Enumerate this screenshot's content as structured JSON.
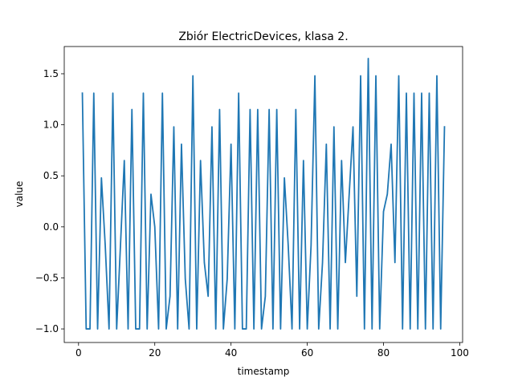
{
  "chart_data": {
    "type": "line",
    "title": "Zbiór ElectricDevices, klasa 2.",
    "xlabel": "timestamp",
    "ylabel": "value",
    "xlim": [
      -3.75,
      100.75
    ],
    "ylim": [
      -1.133,
      1.767
    ],
    "xticks": [
      0,
      20,
      40,
      60,
      80,
      100
    ],
    "xtick_labels": [
      "0",
      "20",
      "40",
      "60",
      "80",
      "100"
    ],
    "yticks": [
      -1.0,
      -0.5,
      0.0,
      0.5,
      1.0,
      1.5
    ],
    "ytick_labels": [
      "−1.0",
      "−0.5",
      "0.0",
      "0.5",
      "1.0",
      "1.5"
    ],
    "grid": false,
    "series": [
      {
        "color": "#1f77b4",
        "x": [
          1,
          2,
          3,
          4,
          5,
          6,
          7,
          8,
          9,
          10,
          11,
          12,
          13,
          14,
          15,
          16,
          17,
          18,
          19,
          20,
          21,
          22,
          23,
          24,
          25,
          26,
          27,
          28,
          29,
          30,
          31,
          32,
          33,
          34,
          35,
          36,
          37,
          38,
          39,
          40,
          41,
          42,
          43,
          44,
          45,
          46,
          47,
          48,
          49,
          50,
          51,
          52,
          53,
          54,
          55,
          56,
          57,
          58,
          59,
          60,
          61,
          62,
          63,
          64,
          65,
          66,
          67,
          68,
          69,
          70,
          71,
          72,
          73,
          74,
          75,
          76,
          77,
          78,
          79,
          80,
          81,
          82,
          83,
          84,
          85,
          86,
          87,
          88,
          89,
          90,
          91,
          92,
          93,
          94,
          95,
          96
        ],
        "y": [
          1.31,
          -1.0,
          -1.0,
          1.31,
          -1.0,
          0.48,
          -0.18,
          -1.0,
          1.31,
          -1.0,
          -0.18,
          0.65,
          -1.0,
          1.15,
          -1.0,
          -1.0,
          1.31,
          -1.0,
          0.32,
          0.0,
          -1.0,
          1.31,
          -1.0,
          -0.68,
          0.98,
          -1.0,
          0.81,
          -0.51,
          -1.0,
          1.48,
          -1.0,
          0.65,
          -0.35,
          -0.68,
          0.98,
          -1.0,
          1.15,
          -1.0,
          -0.51,
          0.81,
          -1.0,
          1.31,
          -1.0,
          -1.0,
          1.15,
          -1.0,
          1.15,
          -1.0,
          -0.68,
          1.15,
          -1.0,
          1.15,
          -1.0,
          0.48,
          -0.18,
          -1.0,
          1.15,
          -1.0,
          0.65,
          -1.0,
          -0.18,
          1.48,
          -1.0,
          -0.35,
          0.81,
          -1.0,
          0.98,
          -1.0,
          0.65,
          -0.35,
          0.32,
          0.98,
          -0.68,
          1.48,
          -1.0,
          1.65,
          -1.0,
          1.48,
          -1.0,
          0.15,
          0.32,
          0.81,
          -0.35,
          1.48,
          -1.0,
          1.31,
          -1.0,
          1.31,
          -1.0,
          1.31,
          -1.0,
          1.31,
          -1.0,
          1.48,
          -1.0,
          0.98
        ]
      }
    ]
  }
}
